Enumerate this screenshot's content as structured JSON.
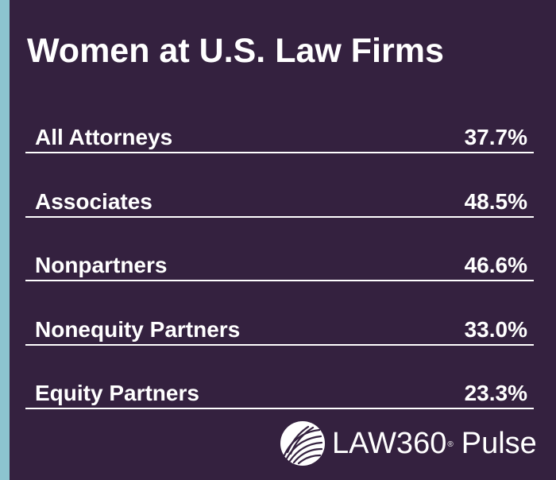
{
  "colors": {
    "background": "#34213f",
    "accent_bar": "#8cc4cf",
    "text": "#ffffff"
  },
  "title": "Women at U.S. Law Firms",
  "chart_data": {
    "type": "table",
    "title": "Women at U.S. Law Firms",
    "rows": [
      {
        "label": "All Attorneys",
        "value_text": "37.7%",
        "value": 37.7
      },
      {
        "label": "Associates",
        "value_text": "48.5%",
        "value": 48.5
      },
      {
        "label": "Nonpartners",
        "value_text": "46.6%",
        "value": 46.6
      },
      {
        "label": "Nonequity Partners",
        "value_text": "33.0%",
        "value": 33.0
      },
      {
        "label": "Equity Partners",
        "value_text": "23.3%",
        "value": 23.3
      }
    ]
  },
  "logo": {
    "icon": "law360-feather-logo-icon",
    "brand": "LAW360",
    "registered": "®",
    "product": "Pulse"
  }
}
